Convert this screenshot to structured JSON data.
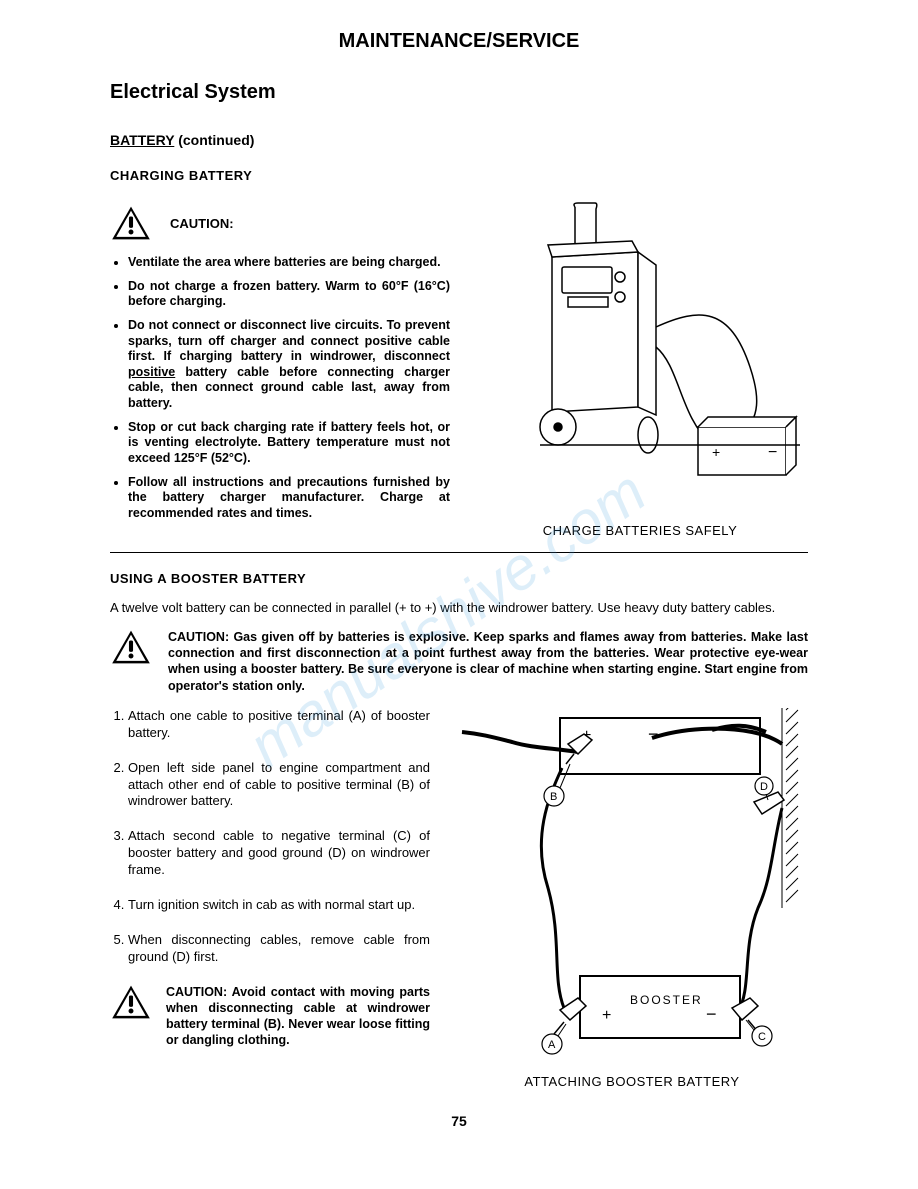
{
  "header": "MAINTENANCE/SERVICE",
  "section_title": "Electrical System",
  "sub1_underlined": "BATTERY",
  "sub1_rest": " (continued)",
  "sub2": "CHARGING BATTERY",
  "caution_label": "CAUTION:",
  "bullets": [
    "Ventilate the area where batteries are being charged.",
    "Do not charge a frozen battery. Warm to 60°F (16°C) before charging.",
    "Do not connect or disconnect live circuits. To prevent sparks, turn off charger and connect positive cable first. If charging battery in windrower, disconnect <u>positive</u> battery cable before connecting charger cable, then connect ground cable last, away from battery.",
    "Stop or cut back charging rate if battery feels hot, or is venting electrolyte. Battery temperature must not exceed 125°F (52°C).",
    "Follow all instructions and precautions furnished by the battery charger manufacturer. Charge at recommended rates and times."
  ],
  "fig1_caption": "CHARGE BATTERIES SAFELY",
  "sub3": "USING A BOOSTER BATTERY",
  "paragraph": "A twelve volt battery can be connected in parallel (+ to +) with the windrower battery. Use heavy duty battery cables.",
  "caution_block": "CAUTION: Gas given off by batteries is explosive. Keep sparks and flames away from batteries. Make last connection and first disconnection at a point furthest away from the batteries. Wear protective eye-wear when using a booster battery. Be sure everyone is clear of machine when starting engine. Start engine from operator's station only.",
  "steps": [
    "Attach one cable to positive terminal (A) of booster battery.",
    "Open left side panel to engine compartment and attach other end of cable to positive terminal (B) of windrower battery.",
    "Attach second cable to negative terminal (C) of booster battery and good ground (D) on windrower frame.",
    "Turn ignition switch in cab as with normal start up.",
    "When disconnecting cables, remove cable from ground (D) first."
  ],
  "caution2": "CAUTION: Avoid contact with moving parts when disconnecting cable at windrower battery terminal (B). Never wear loose fitting or dangling clothing.",
  "fig2_caption": "ATTACHING BOOSTER BATTERY",
  "fig2_label_booster": "BOOSTER",
  "fig2_labels": {
    "A": "A",
    "B": "B",
    "C": "C",
    "D": "D"
  },
  "page_number": "75",
  "watermark": {
    "text": "manualshive.com",
    "color": "#4aa3e0",
    "fontsize": 60,
    "rotation": -35
  },
  "colors": {
    "text": "#000000",
    "background": "#ffffff",
    "underline": "#000000"
  }
}
